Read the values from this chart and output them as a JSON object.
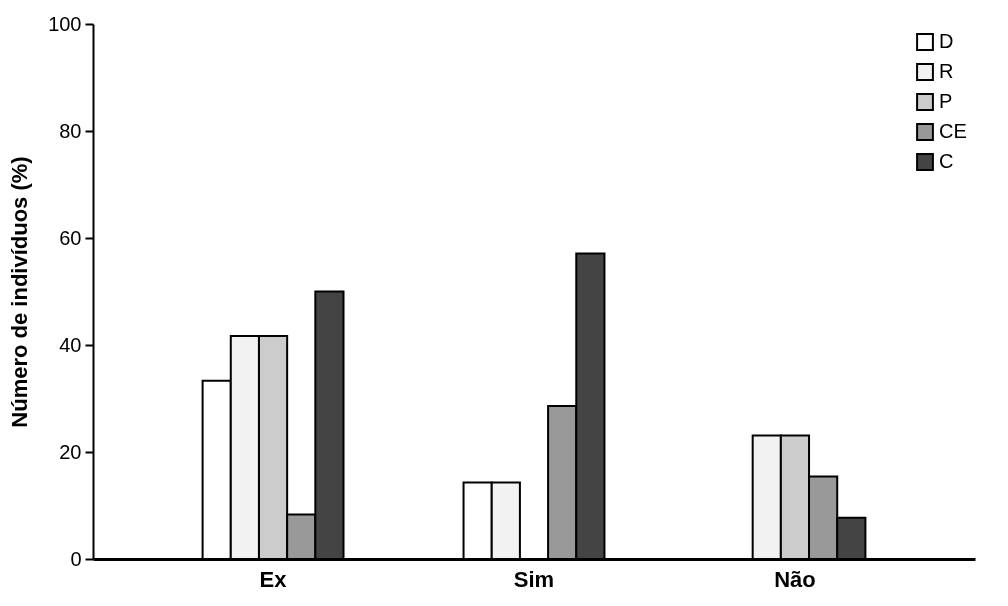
{
  "chart_data": {
    "type": "bar",
    "ylabel": "Número de indivíduos (%)",
    "categories": [
      "Ex",
      "Sim",
      "Não"
    ],
    "series": [
      {
        "name": "D",
        "color": "#ffffff",
        "values": [
          33.3,
          14.3,
          null
        ]
      },
      {
        "name": "R",
        "color": "#f2f2f2",
        "values": [
          41.7,
          14.3,
          23.1
        ]
      },
      {
        "name": "P",
        "color": "#cccccc",
        "values": [
          41.7,
          null,
          23.1
        ]
      },
      {
        "name": "CE",
        "color": "#999999",
        "values": [
          8.3,
          28.6,
          15.4
        ]
      },
      {
        "name": "C",
        "color": "#444444",
        "values": [
          50,
          57.1,
          7.7
        ]
      }
    ],
    "ylim": [
      0,
      100
    ],
    "yticks": [
      0,
      20,
      40,
      60,
      80,
      100
    ],
    "legend": "top right",
    "grid": false
  }
}
